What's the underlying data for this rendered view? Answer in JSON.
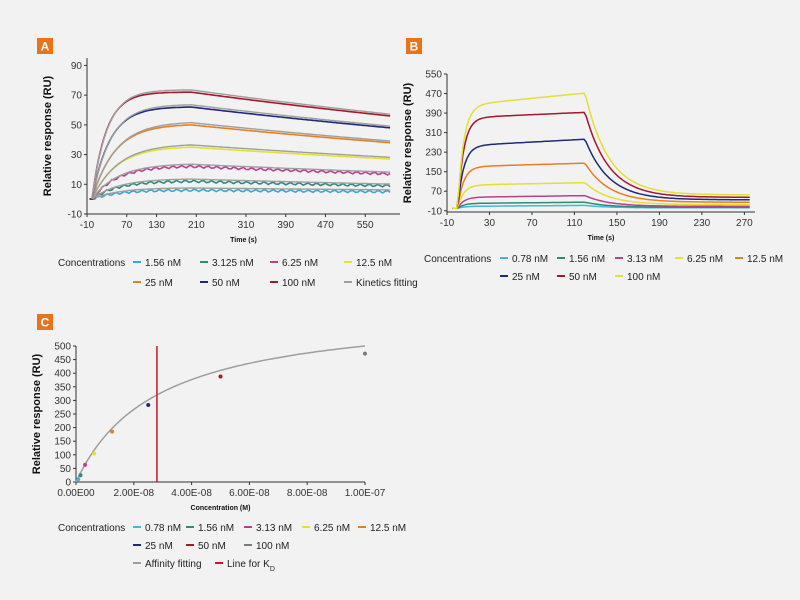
{
  "colors": {
    "badge": "#e8731d",
    "axis": "#333333",
    "fit": "#9e9e9e",
    "kd_line": "#c4182a",
    "conc": {
      "0.78 nM": "#43b8d8",
      "1.56 nM": "#3aa7d2",
      "3.125 nM": "#2f8a7c",
      "3.13 nM": "#b7418f",
      "6.25 nM": "#b7418f",
      "12.5 nM": "#e3e034",
      "25 nM": "#e87e22",
      "50 nM": "#1d2a78",
      "100 nM": "#a3182c"
    }
  },
  "chart_data": [
    {
      "panel": "A",
      "type": "line",
      "xlabel": "Time (s)",
      "ylabel": "Relative response (RU)",
      "xlim": [
        -10,
        620
      ],
      "ylim": [
        -10,
        95
      ],
      "xticks": [
        -10,
        70,
        130,
        210,
        310,
        390,
        470,
        550
      ],
      "yticks": [
        -10,
        10,
        30,
        50,
        70,
        90
      ],
      "legend_title": "Concentrations",
      "legend_position": "bottom",
      "association_end": 200,
      "series": [
        {
          "name": "1.56 nM",
          "color": "#3aa7d2",
          "peak": 6,
          "end": 5,
          "kobs": 0.02
        },
        {
          "name": "3.125 nM",
          "color": "#2f8a7c",
          "peak": 12,
          "end": 9,
          "kobs": 0.02
        },
        {
          "name": "6.25 nM",
          "color": "#b7418f",
          "peak": 22,
          "end": 17,
          "kobs": 0.02
        },
        {
          "name": "12.5 nM",
          "color": "#e3e034",
          "peak": 35,
          "end": 27,
          "kobs": 0.02
        },
        {
          "name": "25 nM",
          "color": "#e87e22",
          "peak": 50,
          "end": 38,
          "kobs": 0.022
        },
        {
          "name": "50 nM",
          "color": "#1d2a78",
          "peak": 62,
          "end": 48,
          "kobs": 0.028
        },
        {
          "name": "100 nM",
          "color": "#a3182c",
          "peak": 72,
          "end": 56,
          "kobs": 0.035
        },
        {
          "name": "Kinetics fitting",
          "color": "#9e9e9e"
        }
      ]
    },
    {
      "panel": "B",
      "type": "line",
      "xlabel": "Time (s)",
      "ylabel": "Relative response (RU)",
      "xlim": [
        -10,
        280
      ],
      "ylim": [
        -15,
        550
      ],
      "xticks": [
        -10,
        30,
        70,
        110,
        150,
        190,
        230,
        270
      ],
      "yticks": [
        -10,
        70,
        150,
        230,
        310,
        390,
        470,
        550
      ],
      "legend_title": "Concentrations",
      "legend_position": "bottom",
      "association_start": 0,
      "association_end": 120,
      "series": [
        {
          "name": "0.78 nM",
          "color": "#43b8d8",
          "plateau": 8,
          "peak": 12,
          "residual": 2
        },
        {
          "name": "1.56 nM",
          "color": "#2f8a7c",
          "plateau": 20,
          "peak": 25,
          "residual": 4
        },
        {
          "name": "3.13 nM",
          "color": "#b7418f",
          "plateau": 45,
          "peak": 52,
          "residual": 8
        },
        {
          "name": "6.25 nM",
          "color": "#e3e034",
          "plateau": 95,
          "peak": 105,
          "residual": 15
        },
        {
          "name": "12.5 nM",
          "color": "#e87e22",
          "plateau": 170,
          "peak": 185,
          "residual": 25
        },
        {
          "name": "25 nM",
          "color": "#1d2a78",
          "plateau": 255,
          "peak": 283,
          "residual": 35
        },
        {
          "name": "50 nM",
          "color": "#a3182c",
          "plateau": 370,
          "peak": 393,
          "residual": 45
        },
        {
          "name": "100 nM",
          "color": "#e3e034",
          "plateau": 420,
          "peak": 472,
          "residual": 55
        }
      ]
    },
    {
      "panel": "C",
      "type": "scatter",
      "xlabel": "Concentration (M)",
      "ylabel": "Relative response (RU)",
      "xlim": [
        0,
        1e-07
      ],
      "ylim": [
        0,
        500
      ],
      "xticks": [
        0,
        2e-08,
        4e-08,
        6e-08,
        8e-08,
        1e-07
      ],
      "xtick_labels": [
        "0.00E00",
        "2.00E-08",
        "4.00E-08",
        "6.00E-08",
        "8.00E-08",
        "1.00E-07"
      ],
      "yticks": [
        0,
        50,
        100,
        150,
        200,
        250,
        300,
        350,
        400,
        450,
        500
      ],
      "legend_title": "Concentrations",
      "legend_position": "bottom",
      "kd": 2.8e-08,
      "rmax": 640,
      "points": [
        {
          "name": "0.78 nM",
          "x": 7.8e-10,
          "y": 10,
          "color": "#43b8d8"
        },
        {
          "name": "1.56 nM",
          "x": 1.56e-09,
          "y": 25,
          "color": "#2f8a7c"
        },
        {
          "name": "3.13 nM",
          "x": 3.13e-09,
          "y": 63,
          "color": "#b7418f"
        },
        {
          "name": "6.25 nM",
          "x": 6.25e-09,
          "y": 105,
          "color": "#e3e034"
        },
        {
          "name": "12.5 nM",
          "x": 1.25e-08,
          "y": 185,
          "color": "#e87e22"
        },
        {
          "name": "25 nM",
          "x": 2.5e-08,
          "y": 283,
          "color": "#1d2a78"
        },
        {
          "name": "50 nM",
          "x": 5e-08,
          "y": 388,
          "color": "#a3182c"
        },
        {
          "name": "100 nM",
          "x": 1e-07,
          "y": 472,
          "color": "#7a7a7a"
        }
      ],
      "extra_legend": [
        {
          "name": "Affinity fitting",
          "color": "#9e9e9e"
        },
        {
          "name": "Line for K",
          "sub": "D",
          "color": "#c4182a"
        }
      ]
    }
  ],
  "panels": {
    "A": {
      "badge": "A"
    },
    "B": {
      "badge": "B"
    },
    "C": {
      "badge": "C"
    }
  }
}
